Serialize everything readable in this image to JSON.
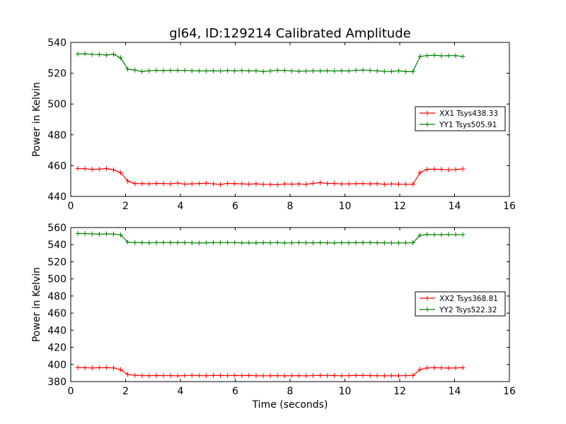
{
  "figure": {
    "title": "gl64, ID:129214 Calibrated Amplitude"
  },
  "chart_data": [
    {
      "type": "line",
      "title": "gl64, ID:129214 Calibrated Amplitude",
      "xlabel": "",
      "ylabel": "Power in Kelvin",
      "xlim": [
        0,
        16
      ],
      "ylim": [
        440,
        540
      ],
      "xticks": [
        0,
        2,
        4,
        6,
        8,
        10,
        12,
        14,
        16
      ],
      "yticks": [
        440,
        460,
        480,
        500,
        520,
        540
      ],
      "grid": false,
      "legend_position": "center-right",
      "x": [
        0.26,
        0.52,
        0.78,
        1.04,
        1.3,
        1.56,
        1.82,
        2.08,
        2.34,
        2.6,
        2.86,
        3.12,
        3.38,
        3.64,
        3.9,
        4.16,
        4.42,
        4.68,
        4.94,
        5.2,
        5.46,
        5.72,
        5.98,
        6.24,
        6.5,
        6.76,
        7.02,
        7.28,
        7.54,
        7.8,
        8.06,
        8.32,
        8.58,
        8.84,
        9.1,
        9.36,
        9.62,
        9.88,
        10.14,
        10.4,
        10.66,
        10.92,
        11.18,
        11.44,
        11.7,
        11.96,
        12.22,
        12.48,
        12.74,
        13.0,
        13.26,
        13.52,
        13.78,
        14.04,
        14.3
      ],
      "series": [
        {
          "name": "XX1 Tsys438.33",
          "color": "#ff0000",
          "values": [
            458.1,
            458.0,
            457.6,
            457.7,
            458.1,
            457.3,
            455.5,
            450.0,
            448.3,
            448.4,
            448.2,
            448.5,
            448.4,
            448.2,
            448.7,
            448.0,
            448.2,
            448.4,
            448.6,
            448.2,
            447.8,
            448.5,
            448.3,
            448.2,
            448.0,
            448.2,
            447.9,
            447.8,
            447.6,
            448.1,
            448.0,
            448.1,
            447.9,
            448.5,
            449.0,
            448.4,
            448.5,
            448.1,
            448.2,
            448.3,
            448.4,
            448.2,
            448.3,
            447.9,
            448.1,
            448.0,
            448.0,
            447.9,
            455.5,
            457.6,
            457.7,
            457.6,
            457.2,
            457.5,
            457.9
          ]
        },
        {
          "name": "YY1 Tsys505.91",
          "color": "#008000",
          "values": [
            532.5,
            532.6,
            532.2,
            532.1,
            531.8,
            532.3,
            530.0,
            522.6,
            522.0,
            521.1,
            521.6,
            521.8,
            521.7,
            521.9,
            521.8,
            521.8,
            521.6,
            521.5,
            521.5,
            521.6,
            521.4,
            521.7,
            521.5,
            521.7,
            521.5,
            521.6,
            521.1,
            521.5,
            521.9,
            521.8,
            521.5,
            521.3,
            521.4,
            521.5,
            521.5,
            521.6,
            521.4,
            521.6,
            521.5,
            521.9,
            522.0,
            521.8,
            521.5,
            521.2,
            521.1,
            521.6,
            521.0,
            521.0,
            530.9,
            531.4,
            531.7,
            531.3,
            531.4,
            531.4,
            530.9
          ]
        }
      ]
    },
    {
      "type": "line",
      "title": "",
      "xlabel": "Time (seconds)",
      "ylabel": "Power in Kelvin",
      "xlim": [
        0,
        16
      ],
      "ylim": [
        380,
        560
      ],
      "xticks": [
        0,
        2,
        4,
        6,
        8,
        10,
        12,
        14,
        16
      ],
      "yticks": [
        380,
        400,
        420,
        440,
        460,
        480,
        500,
        520,
        540,
        560
      ],
      "grid": false,
      "legend_position": "center-right",
      "x": [
        0.26,
        0.52,
        0.78,
        1.04,
        1.3,
        1.56,
        1.82,
        2.08,
        2.34,
        2.6,
        2.86,
        3.12,
        3.38,
        3.64,
        3.9,
        4.16,
        4.42,
        4.68,
        4.94,
        5.2,
        5.46,
        5.72,
        5.98,
        6.24,
        6.5,
        6.76,
        7.02,
        7.28,
        7.54,
        7.8,
        8.06,
        8.32,
        8.58,
        8.84,
        9.1,
        9.36,
        9.62,
        9.88,
        10.14,
        10.4,
        10.66,
        10.92,
        11.18,
        11.44,
        11.7,
        11.96,
        12.22,
        12.48,
        12.74,
        13.0,
        13.26,
        13.52,
        13.78,
        14.04,
        14.3
      ],
      "series": [
        {
          "name": "XX2 Tsys368.81",
          "color": "#ff0000",
          "values": [
            396.4,
            396.2,
            396.0,
            396.2,
            396.3,
            396.0,
            394.0,
            388.4,
            387.3,
            387.0,
            386.9,
            387.1,
            387.0,
            387.0,
            386.8,
            387.0,
            387.1,
            387.0,
            386.9,
            387.2,
            387.1,
            387.0,
            387.1,
            387.0,
            387.1,
            386.9,
            386.8,
            386.9,
            387.0,
            386.8,
            386.9,
            386.9,
            386.8,
            387.0,
            387.2,
            387.0,
            387.1,
            386.8,
            387.0,
            387.2,
            387.1,
            387.0,
            386.9,
            386.8,
            386.9,
            386.8,
            387.0,
            387.1,
            394.2,
            396.0,
            396.2,
            396.1,
            395.8,
            396.0,
            396.2
          ]
        },
        {
          "name": "YY2 Tsys522.32",
          "color": "#008000",
          "values": [
            553.1,
            553.0,
            552.6,
            552.3,
            552.6,
            552.4,
            551.4,
            543.0,
            542.3,
            542.4,
            542.1,
            542.4,
            542.5,
            542.3,
            542.3,
            542.4,
            542.2,
            542.0,
            542.2,
            542.3,
            542.4,
            542.4,
            542.3,
            542.1,
            542.2,
            542.0,
            542.3,
            542.1,
            542.5,
            542.0,
            542.1,
            542.4,
            542.2,
            542.1,
            542.3,
            542.2,
            542.0,
            542.3,
            542.2,
            542.3,
            542.4,
            542.3,
            542.2,
            542.1,
            542.0,
            542.0,
            542.1,
            542.2,
            550.9,
            551.8,
            551.7,
            551.6,
            551.8,
            551.7,
            551.7
          ]
        }
      ]
    }
  ]
}
